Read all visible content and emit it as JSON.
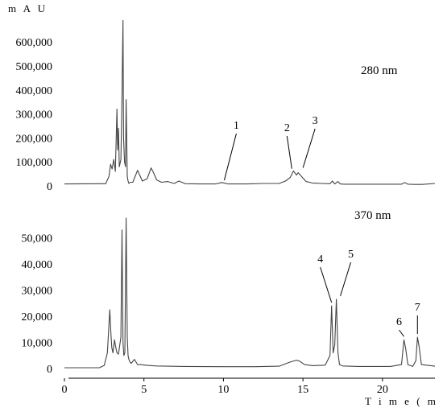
{
  "chart_data": [
    {
      "type": "line",
      "ylabel": "m A U",
      "wavelength_label": "280 nm",
      "ylim": [
        0,
        700000
      ],
      "y_ticks": [
        "0",
        "100,000",
        "200,000",
        "300,000",
        "400,000",
        "500,000",
        "600,000"
      ],
      "y_tick_values": [
        0,
        100000,
        200000,
        300000,
        400000,
        500000,
        600000
      ],
      "series": [
        {
          "x": [
            0,
            2.6,
            2.8,
            2.9,
            3.0,
            3.1,
            3.2,
            3.3,
            3.35,
            3.4,
            3.45,
            3.55,
            3.62,
            3.68,
            3.72,
            3.78,
            3.84,
            3.88,
            3.95,
            4.0,
            4.05,
            4.15,
            4.3,
            4.6,
            4.9,
            5.2,
            5.45,
            5.6,
            5.8,
            6.1,
            6.5,
            6.9,
            7.2,
            7.6,
            8.5,
            9.5,
            9.9,
            10.3,
            11.5,
            12.5,
            13.5,
            13.9,
            14.2,
            14.4,
            14.6,
            14.7,
            14.9,
            15.2,
            15.6,
            16.2,
            16.7,
            16.85,
            17.0,
            17.2,
            17.35,
            17.6,
            19.0,
            20.0,
            21.2,
            21.4,
            21.6,
            22.0,
            22.5,
            23.3
          ],
          "y": [
            8000,
            9000,
            40000,
            90000,
            70000,
            110000,
            60000,
            320000,
            150000,
            240000,
            80000,
            110000,
            380000,
            690000,
            200000,
            100000,
            80000,
            360000,
            40000,
            20000,
            10000,
            15000,
            15000,
            65000,
            20000,
            30000,
            75000,
            55000,
            25000,
            15000,
            18000,
            10000,
            20000,
            9000,
            8000,
            8000,
            14000,
            8000,
            8000,
            10000,
            10000,
            20000,
            35000,
            62000,
            45000,
            55000,
            40000,
            18000,
            12000,
            10000,
            9000,
            20000,
            8000,
            18000,
            8000,
            7000,
            7000,
            7000,
            7000,
            14000,
            7000,
            6000,
            6000,
            10000
          ]
        }
      ],
      "peaks": [
        {
          "label": "1",
          "x": 10.0,
          "y": 10000
        },
        {
          "label": "2",
          "x": 14.3,
          "y": 58000
        },
        {
          "label": "3",
          "x": 14.95,
          "y": 62000
        }
      ]
    },
    {
      "type": "line",
      "wavelength_label": "370 nm",
      "ylim": [
        0,
        60000
      ],
      "y_ticks": [
        "0",
        "10,000",
        "20,000",
        "30,000",
        "40,000",
        "50,000"
      ],
      "y_tick_values": [
        0,
        10000,
        20000,
        30000,
        40000,
        50000
      ],
      "x_ticks": [
        "0",
        "5",
        "10",
        "15",
        "20"
      ],
      "x_tick_values": [
        0,
        5,
        10,
        15,
        20
      ],
      "xlim": [
        0,
        23.3
      ],
      "xlabel": "T i m e ( m i n )",
      "series": [
        {
          "x": [
            0,
            2.2,
            2.5,
            2.7,
            2.85,
            2.92,
            2.98,
            3.05,
            3.15,
            3.2,
            3.3,
            3.4,
            3.55,
            3.62,
            3.68,
            3.74,
            3.8,
            3.88,
            3.95,
            4.0,
            4.05,
            4.12,
            4.2,
            4.4,
            4.6,
            4.8,
            5.2,
            5.8,
            6.5,
            7.5,
            10.0,
            12.0,
            13.5,
            14.2,
            14.6,
            14.8,
            15.1,
            15.6,
            16.4,
            16.7,
            16.8,
            16.9,
            17.0,
            17.1,
            17.2,
            17.3,
            17.5,
            18.5,
            20.5,
            21.2,
            21.35,
            21.45,
            21.6,
            21.9,
            22.1,
            22.2,
            22.3,
            22.45,
            23.3
          ],
          "y": [
            300,
            300,
            1200,
            6000,
            22500,
            14000,
            8000,
            6000,
            11000,
            9000,
            6000,
            5500,
            12000,
            53000,
            10000,
            5000,
            6000,
            57500,
            12000,
            5000,
            3500,
            2500,
            2000,
            3500,
            1500,
            1500,
            1200,
            1000,
            900,
            800,
            700,
            700,
            900,
            2500,
            3200,
            2800,
            1500,
            1100,
            1300,
            5000,
            24000,
            6000,
            9000,
            26500,
            6000,
            1500,
            1000,
            800,
            800,
            1500,
            11000,
            8000,
            1500,
            800,
            3000,
            12000,
            8500,
            1500,
            900
          ]
        }
      ],
      "peaks": [
        {
          "label": "4",
          "x": 16.8,
          "y": 24000
        },
        {
          "label": "5",
          "x": 17.3,
          "y": 26500
        },
        {
          "label": "6",
          "x": 21.35,
          "y": 11000
        },
        {
          "label": "7",
          "x": 22.2,
          "y": 12000
        }
      ]
    }
  ]
}
